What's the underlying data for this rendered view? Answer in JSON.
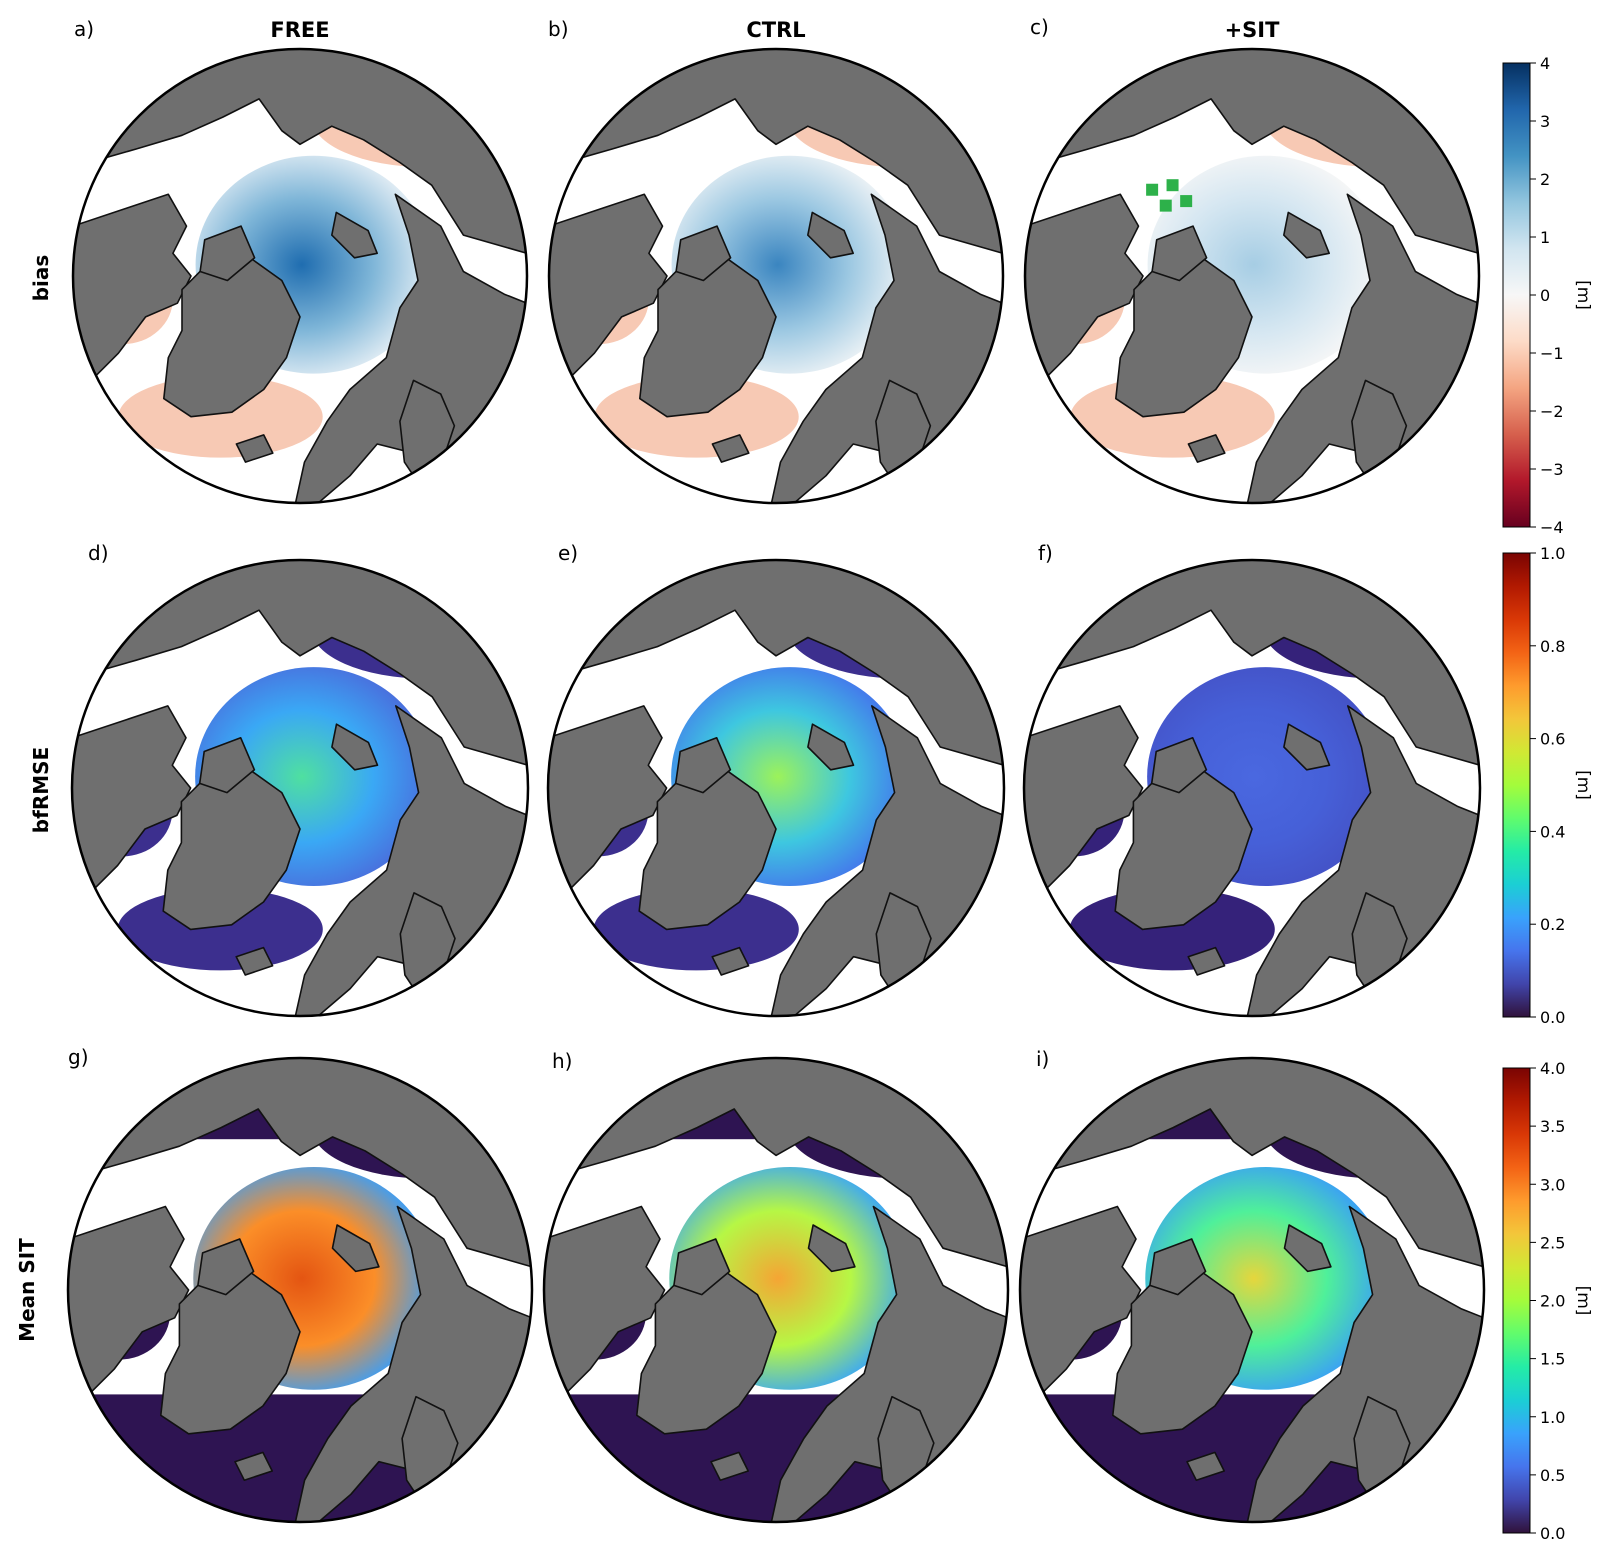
{
  "columns": [
    {
      "id": "free",
      "title": "FREE"
    },
    {
      "id": "ctrl",
      "title": "CTRL"
    },
    {
      "id": "sit",
      "title": "+SIT"
    }
  ],
  "rows": [
    {
      "id": "bias",
      "label": "bias",
      "panels": [
        "a)",
        "b)",
        "c)"
      ],
      "colorbar": {
        "unit": "[m]",
        "ticks": [
          "4",
          "3",
          "2",
          "1",
          "0",
          "−1",
          "−2",
          "−3",
          "−4"
        ],
        "min": -4,
        "max": 4,
        "colors": [
          "#67001f",
          "#b2182b",
          "#d6604d",
          "#f4a582",
          "#fddbc7",
          "#f7f7f7",
          "#d1e5f0",
          "#92c5de",
          "#4393c3",
          "#2166ac",
          "#053061"
        ]
      }
    },
    {
      "id": "bfrmse",
      "label": "bfRMSE",
      "panels": [
        "d)",
        "e)",
        "f)"
      ],
      "colorbar": {
        "unit": "[m]",
        "ticks": [
          "1.0",
          "0.8",
          "0.6",
          "0.4",
          "0.2",
          "0.0"
        ],
        "min": 0,
        "max": 1,
        "colors": [
          "#30123b",
          "#4145ab",
          "#4675ed",
          "#39a2fc",
          "#1bcfd4",
          "#24eca6",
          "#61fc6c",
          "#a4fc3b",
          "#d1e834",
          "#f3c63a",
          "#fe9b2d",
          "#f36315",
          "#d93806",
          "#b11901",
          "#7a0403"
        ]
      }
    },
    {
      "id": "meansit",
      "label": "Mean SIT",
      "panels": [
        "g)",
        "h)",
        "i)"
      ],
      "colorbar": {
        "unit": "[m]",
        "ticks": [
          "4.0",
          "3.5",
          "3.0",
          "2.5",
          "2.0",
          "1.5",
          "1.0",
          "0.5",
          "0.0"
        ],
        "min": 0,
        "max": 4,
        "colors": [
          "#30123b",
          "#4145ab",
          "#4675ed",
          "#39a2fc",
          "#1bcfd4",
          "#24eca6",
          "#61fc6c",
          "#a4fc3b",
          "#d1e834",
          "#f3c63a",
          "#fe9b2d",
          "#f36315",
          "#d93806",
          "#b11901",
          "#7a0403"
        ]
      }
    }
  ],
  "map_colors": {
    "land": "#6f6f6f",
    "background": "#ffffff",
    "marker": "#2db14a",
    "ice": [
      {
        "row": "bias",
        "col": "free",
        "center": "#1f6db0",
        "mid": "#7fb6d8",
        "edge": "#e4eef5",
        "shelf": "#f7c9b4"
      },
      {
        "row": "bias",
        "col": "ctrl",
        "center": "#3a85c0",
        "mid": "#9cc8e2",
        "edge": "#eef3f6",
        "shelf": "#f7c9b4"
      },
      {
        "row": "bias",
        "col": "sit",
        "center": "#a6cde4",
        "mid": "#d4e6f1",
        "edge": "#f7f7f7",
        "shelf": "#f7c9b4"
      },
      {
        "row": "bfrmse",
        "col": "free",
        "center": "#4fe0a0",
        "mid": "#3aa8f5",
        "edge": "#4a6ddc",
        "shelf": "#3c2f8e"
      },
      {
        "row": "bfrmse",
        "col": "ctrl",
        "center": "#9cf25a",
        "mid": "#3ec7e0",
        "edge": "#4475ec",
        "shelf": "#3c2f8e"
      },
      {
        "row": "bfrmse",
        "col": "sit",
        "center": "#4a68e0",
        "mid": "#4660d8",
        "edge": "#4452c6",
        "shelf": "#35227a"
      },
      {
        "row": "meansit",
        "col": "free",
        "center": "#e45512",
        "mid": "#fb8e28",
        "edge": "#3a9ef8",
        "shelf": "#2e1452"
      },
      {
        "row": "meansit",
        "col": "ctrl",
        "center": "#f5a534",
        "mid": "#b6f745",
        "edge": "#3aa6f8",
        "shelf": "#2e1452"
      },
      {
        "row": "meansit",
        "col": "sit",
        "center": "#e6d63c",
        "mid": "#4ff09a",
        "edge": "#3a9ef8",
        "shelf": "#2e1452"
      }
    ]
  }
}
